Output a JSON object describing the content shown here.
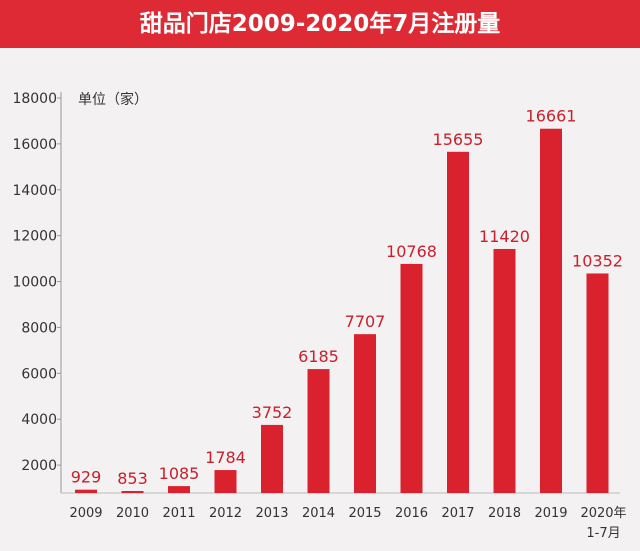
{
  "chart_data": {
    "type": "bar",
    "title": "甜品门店2009-2020年7月注册量",
    "unit_label": "单位（家）",
    "categories": [
      "2009",
      "2010",
      "2011",
      "2012",
      "2013",
      "2014",
      "2015",
      "2016",
      "2017",
      "2018",
      "2019",
      "2020年|1-7月"
    ],
    "values": [
      929,
      853,
      1085,
      1784,
      3752,
      6185,
      7707,
      10768,
      15655,
      11420,
      16661,
      10352
    ],
    "yticks": [
      2000,
      4000,
      6000,
      8000,
      10000,
      12000,
      14000,
      16000,
      18000
    ],
    "ylim": [
      0,
      18000
    ],
    "grid": false,
    "colors": {
      "bar": "#d9222e",
      "label": "#c9202c",
      "title_bg": "#de2a35"
    }
  }
}
